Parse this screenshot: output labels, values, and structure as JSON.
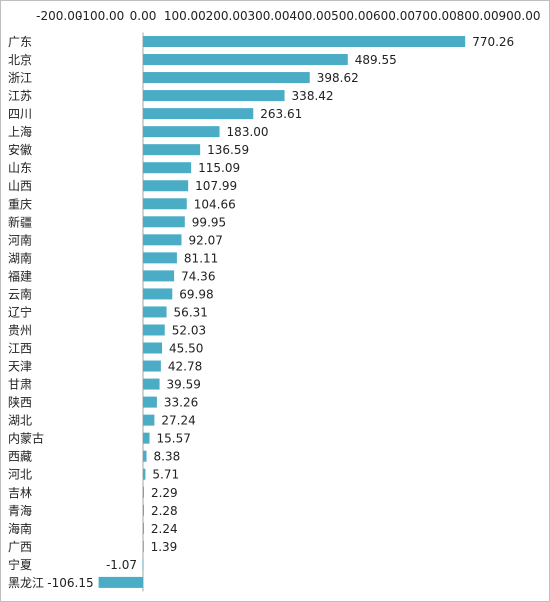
{
  "chart_data": {
    "type": "bar",
    "orientation": "horizontal",
    "title": "",
    "xlabel": "",
    "ylabel": "",
    "xlim": [
      -200,
      900
    ],
    "x_ticks": [
      -200,
      -100,
      0,
      100,
      200,
      300,
      400,
      500,
      600,
      700,
      800,
      900
    ],
    "tick_labels": [
      "-200.00",
      "-100.00",
      "0.00",
      "100.00",
      "200.00",
      "300.00",
      "400.00",
      "500.00",
      "600.00",
      "700.00",
      "800.00",
      "900.00"
    ],
    "axis_position": "top",
    "grid": false,
    "legend": "none",
    "bar_color": "#4BACC6",
    "categories": [
      "广东",
      "北京",
      "浙江",
      "江苏",
      "四川",
      "上海",
      "安徽",
      "山东",
      "山西",
      "重庆",
      "新疆",
      "河南",
      "湖南",
      "福建",
      "云南",
      "辽宁",
      "贵州",
      "江西",
      "天津",
      "甘肃",
      "陕西",
      "湖北",
      "内蒙古",
      "西藏",
      "河北",
      "吉林",
      "青海",
      "海南",
      "广西",
      "宁夏",
      "黑龙江"
    ],
    "values": [
      770.26,
      489.55,
      398.62,
      338.42,
      263.61,
      183.0,
      136.59,
      115.09,
      107.99,
      104.66,
      99.95,
      92.07,
      81.11,
      74.36,
      69.98,
      56.31,
      52.03,
      45.5,
      42.78,
      39.59,
      33.26,
      27.24,
      15.57,
      8.38,
      5.71,
      2.29,
      2.28,
      2.24,
      1.39,
      -1.07,
      -106.15
    ],
    "value_labels": [
      "770.26",
      "489.55",
      "398.62",
      "338.42",
      "263.61",
      "183.00",
      "136.59",
      "115.09",
      "107.99",
      "104.66",
      "99.95",
      "92.07",
      "81.11",
      "74.36",
      "69.98",
      "56.31",
      "52.03",
      "45.50",
      "42.78",
      "39.59",
      "33.26",
      "27.24",
      "15.57",
      "8.38",
      "5.71",
      "2.29",
      "2.28",
      "2.24",
      "1.39",
      "-1.07",
      "-106.15"
    ]
  }
}
